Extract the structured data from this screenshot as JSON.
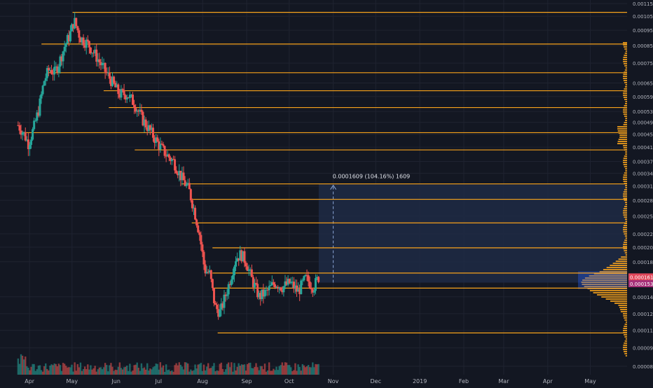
{
  "colors": {
    "background": "#131722",
    "grid": "#1f2330",
    "up": "#26a69a",
    "down": "#ef5350",
    "level_line": "#f7a21b",
    "axis_text": "#b2b5be",
    "measure_fill": "#1e2a44",
    "measure_line": "#8aa6d6",
    "price_badge_up": "#e0475a",
    "price_badge_2": "#a6307a",
    "volume_profile": "#f7a21b",
    "volume_profile_accent": "#2962ff"
  },
  "chart_data": {
    "type": "candlestick",
    "title": "",
    "xlabel": "",
    "ylabel": "",
    "y_axis_scale": "log",
    "ylim": [
      8e-05,
      0.00118
    ],
    "grid": true,
    "x_ticks": [
      {
        "label": "Apr",
        "t": 2018.247
      },
      {
        "label": "May",
        "t": 2018.329
      },
      {
        "label": "Jun",
        "t": 2018.414
      },
      {
        "label": "Jul",
        "t": 2018.496
      },
      {
        "label": "Aug",
        "t": 2018.581
      },
      {
        "label": "Sep",
        "t": 2018.666
      },
      {
        "label": "Oct",
        "t": 2018.748
      },
      {
        "label": "Nov",
        "t": 2018.833
      },
      {
        "label": "Dec",
        "t": 2018.915
      },
      {
        "label": "2019",
        "t": 2019.0
      },
      {
        "label": "Feb",
        "t": 2019.085
      },
      {
        "label": "Mar",
        "t": 2019.162
      },
      {
        "label": "Apr",
        "t": 2019.247
      },
      {
        "label": "May",
        "t": 2019.329
      }
    ],
    "y_ticks": [
      {
        "label": "0.0011500",
        "v": 0.00115
      },
      {
        "label": "0.0010500",
        "v": 0.00105
      },
      {
        "label": "0.0009500",
        "v": 0.00095
      },
      {
        "label": "0.0008500",
        "v": 0.00085
      },
      {
        "label": "0.0007500",
        "v": 0.00075
      },
      {
        "label": "0.0006500",
        "v": 0.00065
      },
      {
        "label": "0.0005900",
        "v": 0.00059
      },
      {
        "label": "0.0005300",
        "v": 0.00053
      },
      {
        "label": "0.0004900",
        "v": 0.00049
      },
      {
        "label": "0.0004500",
        "v": 0.00045
      },
      {
        "label": "0.0004100",
        "v": 0.00041
      },
      {
        "label": "0.0003700",
        "v": 0.00037
      },
      {
        "label": "0.0003400",
        "v": 0.00034
      },
      {
        "label": "0.0003100",
        "v": 0.00031
      },
      {
        "label": "0.0002800",
        "v": 0.00028
      },
      {
        "label": "0.0002500",
        "v": 0.00025
      },
      {
        "label": "0.0002200",
        "v": 0.00022
      },
      {
        "label": "0.0002000",
        "v": 0.0002
      },
      {
        "label": "0.0001800",
        "v": 0.00018
      },
      {
        "label": "0.0001400",
        "v": 0.00014
      },
      {
        "label": "0.0001240",
        "v": 0.000124
      },
      {
        "label": "0.0001100",
        "v": 0.00011
      },
      {
        "label": "0.0000970",
        "v": 9.7e-05
      },
      {
        "label": "0.0000850",
        "v": 8.5e-05
      }
    ],
    "price_badges": [
      {
        "label": "0.0001615",
        "v": 0.0001615,
        "color_key": "price_badge_up"
      },
      {
        "label": "0.0001538",
        "v": 0.0001538,
        "color_key": "price_badge_2"
      }
    ],
    "horizontal_levels": [
      {
        "v": 0.00108,
        "from_t": 2018.33
      },
      {
        "v": 0.00086,
        "from_t": 2018.27
      },
      {
        "v": 0.0007,
        "from_t": 2018.28
      },
      {
        "v": 0.000615,
        "from_t": 2018.39
      },
      {
        "v": 0.000545,
        "from_t": 2018.4
      },
      {
        "v": 0.000455,
        "from_t": 2018.23
      },
      {
        "v": 0.000402,
        "from_t": 2018.45
      },
      {
        "v": 0.000315,
        "from_t": 2018.54
      },
      {
        "v": 0.000282,
        "from_t": 2018.56
      },
      {
        "v": 0.000238,
        "from_t": 2018.56
      },
      {
        "v": 0.000199,
        "from_t": 2018.6
      },
      {
        "v": 0.000166,
        "from_t": 2018.6
      },
      {
        "v": 0.000149,
        "from_t": 2018.6
      },
      {
        "v": 0.000108,
        "from_t": 2018.61
      }
    ],
    "measure": {
      "label": "0.0001609 (104.16%) 1609",
      "from_t": 2018.805,
      "from_v": 0.000155,
      "to_v": 0.000315
    },
    "candle_anchors": [
      [
        2018.225,
        0.00048
      ],
      [
        2018.235,
        0.000455
      ],
      [
        2018.245,
        0.00042
      ],
      [
        2018.255,
        0.00047
      ],
      [
        2018.265,
        0.00054
      ],
      [
        2018.275,
        0.00066
      ],
      [
        2018.285,
        0.00072
      ],
      [
        2018.295,
        0.0007
      ],
      [
        2018.305,
        0.00076
      ],
      [
        2018.315,
        0.00085
      ],
      [
        2018.325,
        0.00092
      ],
      [
        2018.333,
        0.00102
      ],
      [
        2018.345,
        0.0009
      ],
      [
        2018.36,
        0.00086
      ],
      [
        2018.375,
        0.00079
      ],
      [
        2018.39,
        0.00072
      ],
      [
        2018.405,
        0.00066
      ],
      [
        2018.42,
        0.0006
      ],
      [
        2018.435,
        0.0006
      ],
      [
        2018.45,
        0.00056
      ],
      [
        2018.465,
        0.0005
      ],
      [
        2018.48,
        0.00046
      ],
      [
        2018.495,
        0.00042
      ],
      [
        2018.51,
        0.00039
      ],
      [
        2018.525,
        0.00037
      ],
      [
        2018.54,
        0.00033
      ],
      [
        2018.555,
        0.0003
      ],
      [
        2018.565,
        0.00026
      ],
      [
        2018.575,
        0.00022
      ],
      [
        2018.585,
        0.00017
      ],
      [
        2018.595,
        0.000165
      ],
      [
        2018.605,
        0.00013
      ],
      [
        2018.615,
        0.000125
      ],
      [
        2018.63,
        0.00015
      ],
      [
        2018.645,
        0.000185
      ],
      [
        2018.655,
        0.00019
      ],
      [
        2018.665,
        0.00018
      ],
      [
        2018.675,
        0.00016
      ],
      [
        2018.69,
        0.00014
      ],
      [
        2018.705,
        0.000145
      ],
      [
        2018.72,
        0.000155
      ],
      [
        2018.735,
        0.00015
      ],
      [
        2018.75,
        0.000155
      ],
      [
        2018.765,
        0.000145
      ],
      [
        2018.78,
        0.00016
      ],
      [
        2018.795,
        0.00015
      ],
      [
        2018.805,
        0.0001615
      ]
    ]
  }
}
